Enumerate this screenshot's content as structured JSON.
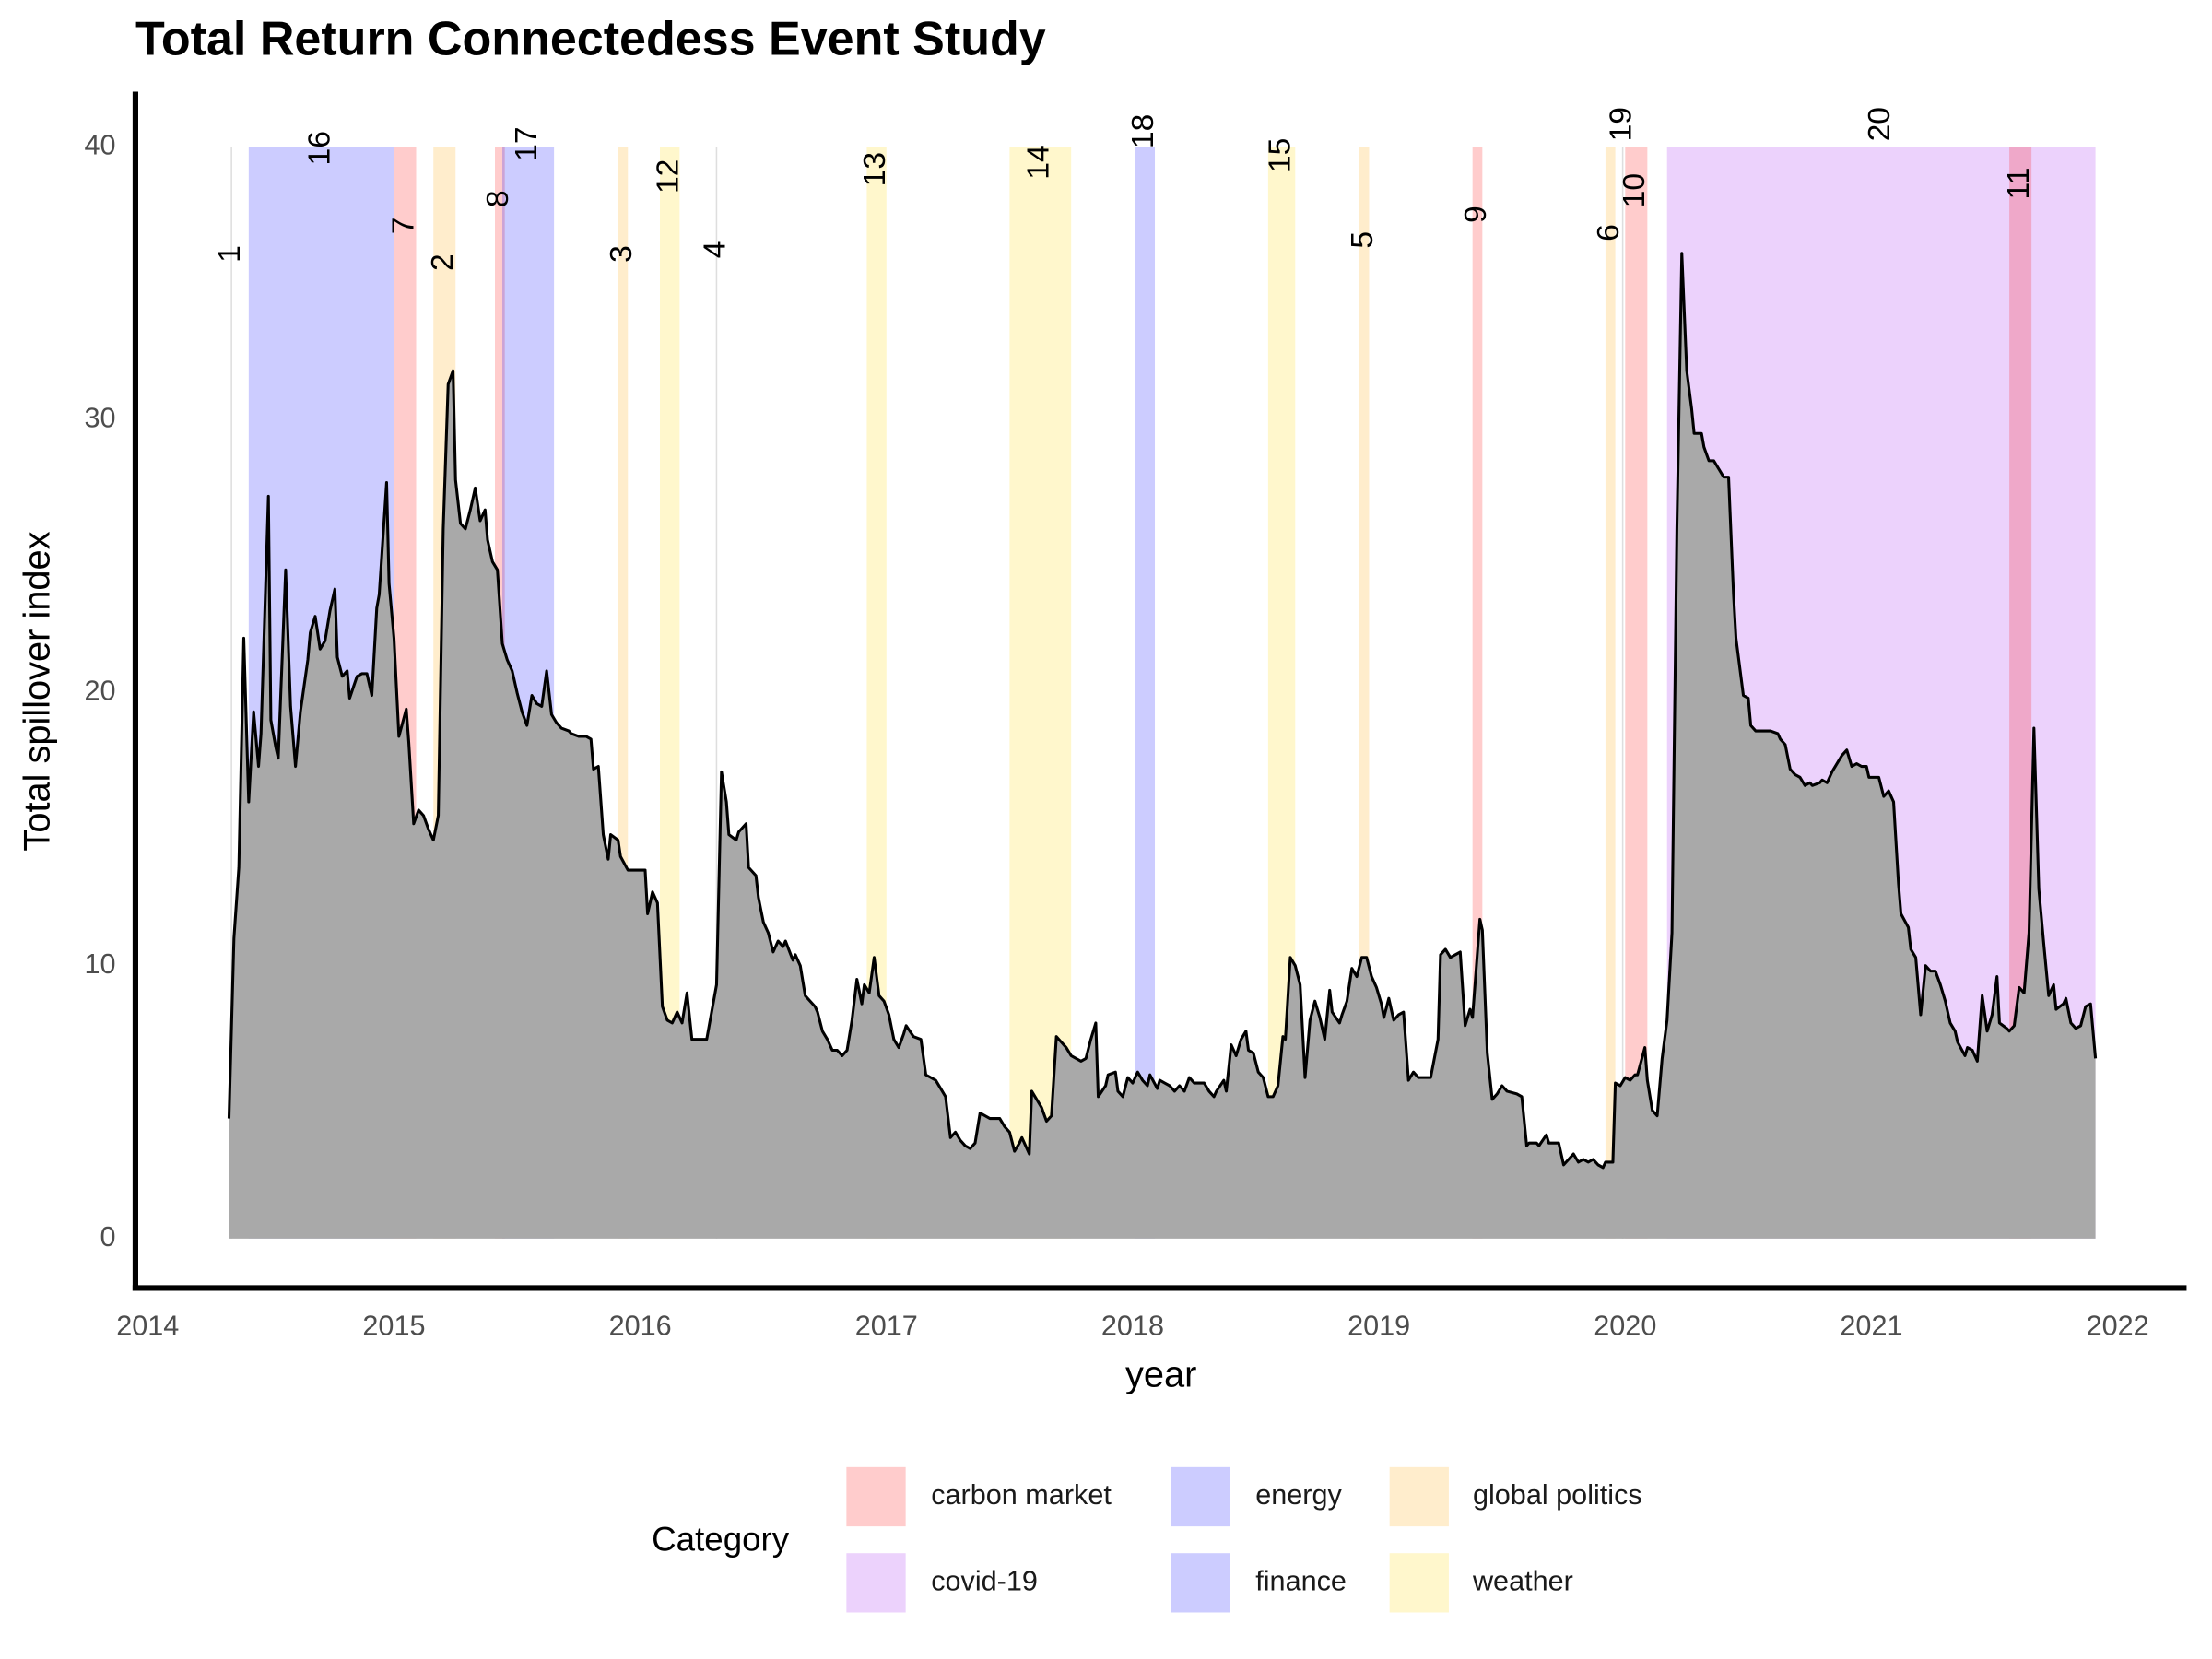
{
  "chart_data": {
    "type": "area",
    "title": "Total Return Connectedess Event Study",
    "x_label": "year",
    "y_label": "Total spillover index",
    "color": "#a9a9a9",
    "line_color": "#000000",
    "xlim": [
      2013.95,
      2022.28
    ],
    "xticks": [
      2014,
      2015,
      2016,
      2017,
      2018,
      2019,
      2020,
      2021,
      2022
    ],
    "ylim": [
      -1.81,
      42.02
    ],
    "yticks": [
      0,
      10,
      20,
      30,
      40
    ],
    "grid": false,
    "band_ylim": [
      0,
      40
    ],
    "legend_title": "Category",
    "legend_position": "bottom",
    "event_categories": [
      {
        "name": "carbon market",
        "color": "#ff0000"
      },
      {
        "name": "covid-19",
        "color": "#a020f0"
      },
      {
        "name": "energy",
        "color": "#0000ff"
      },
      {
        "name": "finance",
        "color": "#0000ff"
      },
      {
        "name": "global politics",
        "color": "#ffa500"
      },
      {
        "name": "weather",
        "color": "#ffd700"
      }
    ],
    "events": [
      {
        "label": "1",
        "start": 2014.34,
        "end": 2014.34
      },
      {
        "label": "16",
        "category": "energy",
        "start": 2014.41,
        "end": 2015.0
      },
      {
        "label": "7",
        "category": "carbon market",
        "start": 2015.0,
        "end": 2015.09
      },
      {
        "label": "2",
        "category": "global politics",
        "start": 2015.16,
        "end": 2015.25
      },
      {
        "label": "8",
        "category": "carbon market",
        "start": 2015.41,
        "end": 2015.45
      },
      {
        "label": "17",
        "category": "finance",
        "start": 2015.44,
        "end": 2015.65
      },
      {
        "label": "3",
        "category": "global politics",
        "start": 2015.91,
        "end": 2015.95
      },
      {
        "label": "12",
        "category": "weather",
        "start": 2016.08,
        "end": 2016.16
      },
      {
        "label": "4",
        "start": 2016.31,
        "end": 2016.31
      },
      {
        "label": "13",
        "category": "weather",
        "start": 2016.92,
        "end": 2017.0
      },
      {
        "label": "14",
        "category": "weather",
        "start": 2017.5,
        "end": 2017.75
      },
      {
        "label": "18",
        "category": "finance",
        "start": 2018.01,
        "end": 2018.09
      },
      {
        "label": "15",
        "category": "weather",
        "start": 2018.55,
        "end": 2018.66
      },
      {
        "label": "5",
        "category": "global politics",
        "start": 2018.92,
        "end": 2018.96
      },
      {
        "label": "9",
        "category": "carbon market",
        "start": 2019.38,
        "end": 2019.42
      },
      {
        "label": "6",
        "category": "global politics",
        "start": 2019.92,
        "end": 2019.96
      },
      {
        "label": "19",
        "start": 2019.99,
        "end": 2019.99
      },
      {
        "label": "10",
        "category": "carbon market",
        "start": 2020.0,
        "end": 2020.09
      },
      {
        "label": "20",
        "category": "covid-19",
        "start": 2020.17,
        "end": 2021.91
      },
      {
        "label": "11",
        "category": "carbon market",
        "start": 2021.56,
        "end": 2021.65
      }
    ],
    "x": [
      2014.33,
      2014.35,
      2014.37,
      2014.39,
      2014.41,
      2014.43,
      2014.45,
      2014.46,
      2014.49,
      2014.5,
      2014.52,
      2014.53,
      2014.56,
      2014.58,
      2014.6,
      2014.62,
      2014.65,
      2014.66,
      2014.68,
      2014.7,
      2014.72,
      2014.74,
      2014.76,
      2014.77,
      2014.79,
      2014.81,
      2014.82,
      2014.85,
      2014.87,
      2014.89,
      2014.91,
      2014.93,
      2014.94,
      2014.97,
      2014.98,
      2015.0,
      2015.02,
      2015.05,
      2015.06,
      2015.08,
      2015.1,
      2015.12,
      2015.14,
      2015.16,
      2015.18,
      2015.2,
      2015.22,
      2015.24,
      2015.25,
      2015.27,
      2015.29,
      2015.31,
      2015.33,
      2015.35,
      2015.37,
      2015.38,
      2015.4,
      2015.42,
      2015.44,
      2015.46,
      2015.48,
      2015.5,
      2015.52,
      2015.54,
      2015.56,
      2015.58,
      2015.6,
      2015.62,
      2015.64,
      2015.66,
      2015.68,
      2015.71,
      2015.72,
      2015.75,
      2015.78,
      2015.8,
      2015.81,
      2015.83,
      2015.85,
      2015.87,
      2015.88,
      2015.91,
      2015.92,
      2015.95,
      2016.02,
      2016.03,
      2016.05,
      2016.07,
      2016.09,
      2016.11,
      2016.13,
      2016.15,
      2016.17,
      2016.19,
      2016.21,
      2016.27,
      2016.28,
      2016.31,
      2016.33,
      2016.35,
      2016.36,
      2016.39,
      2016.4,
      2016.43,
      2016.44,
      2016.47,
      2016.48,
      2016.5,
      2016.52,
      2016.54,
      2016.56,
      2016.58,
      2016.59,
      2016.62,
      2016.63,
      2016.65,
      2016.67,
      2016.69,
      2016.71,
      2016.72,
      2016.74,
      2016.76,
      2016.78,
      2016.8,
      2016.82,
      2016.84,
      2016.86,
      2016.88,
      2016.9,
      2016.91,
      2016.93,
      2016.95,
      2016.97,
      2016.99,
      2017.01,
      2017.03,
      2017.05,
      2017.07,
      2017.08,
      2017.11,
      2017.14,
      2017.16,
      2017.2,
      2017.22,
      2017.24,
      2017.26,
      2017.28,
      2017.3,
      2017.32,
      2017.34,
      2017.36,
      2017.38,
      2017.4,
      2017.42,
      2017.46,
      2017.48,
      2017.5,
      2017.52,
      2017.54,
      2017.55,
      2017.58,
      2017.59,
      2017.61,
      2017.63,
      2017.65,
      2017.67,
      2017.69,
      2017.71,
      2017.73,
      2017.75,
      2017.77,
      2017.79,
      2017.81,
      2017.83,
      2017.85,
      2017.86,
      2017.89,
      2017.9,
      2017.93,
      2017.94,
      2017.96,
      2017.98,
      2018.0,
      2018.02,
      2018.04,
      2018.06,
      2018.07,
      2018.1,
      2018.11,
      2018.13,
      2018.15,
      2018.17,
      2018.19,
      2018.21,
      2018.23,
      2018.25,
      2018.29,
      2018.31,
      2018.33,
      2018.34,
      2018.37,
      2018.38,
      2018.4,
      2018.42,
      2018.44,
      2018.46,
      2018.47,
      2018.49,
      2018.51,
      2018.53,
      2018.55,
      2018.57,
      2018.59,
      2018.61,
      2018.62,
      2018.64,
      2018.66,
      2018.68,
      2018.7,
      2018.72,
      2018.74,
      2018.76,
      2018.78,
      2018.8,
      2018.81,
      2018.84,
      2018.85,
      2018.87,
      2018.89,
      2018.91,
      2018.93,
      2018.95,
      2018.97,
      2018.99,
      2019.01,
      2019.02,
      2019.04,
      2019.06,
      2019.08,
      2019.1,
      2019.12,
      2019.14,
      2019.16,
      2019.21,
      2019.24,
      2019.25,
      2019.27,
      2019.29,
      2019.31,
      2019.33,
      2019.35,
      2019.37,
      2019.38,
      2019.41,
      2019.42,
      2019.44,
      2019.46,
      2019.48,
      2019.5,
      2019.52,
      2019.56,
      2019.58,
      2019.6,
      2019.61,
      2019.64,
      2019.65,
      2019.68,
      2019.69,
      2019.71,
      2019.73,
      2019.75,
      2019.77,
      2019.79,
      2019.81,
      2019.83,
      2019.85,
      2019.87,
      2019.89,
      2019.91,
      2019.92,
      2019.95,
      2019.96,
      2019.98,
      2020.0,
      2020.02,
      2020.04,
      2020.05,
      2020.08,
      2020.09,
      2020.11,
      2020.13,
      2020.15,
      2020.17,
      2020.19,
      2020.21,
      2020.23,
      2020.25,
      2020.27,
      2020.28,
      2020.31,
      2020.32,
      2020.34,
      2020.36,
      2020.38,
      2020.4,
      2020.42,
      2020.44,
      2020.45,
      2020.48,
      2020.5,
      2020.51,
      2020.53,
      2020.59,
      2020.62,
      2020.63,
      2020.65,
      2020.67,
      2020.69,
      2020.71,
      2020.73,
      2020.75,
      2020.76,
      2020.79,
      2020.8,
      2020.82,
      2020.84,
      2020.86,
      2020.88,
      2020.9,
      2020.92,
      2020.94,
      2020.96,
      2020.98,
      2020.99,
      2021.02,
      2021.03,
      2021.05,
      2021.07,
      2021.09,
      2021.11,
      2021.12,
      2021.15,
      2021.16,
      2021.18,
      2021.2,
      2021.22,
      2021.24,
      2021.26,
      2021.28,
      2021.3,
      2021.32,
      2021.34,
      2021.35,
      2021.38,
      2021.39,
      2021.41,
      2021.43,
      2021.45,
      2021.47,
      2021.49,
      2021.51,
      2021.52,
      2021.55,
      2021.56,
      2021.58,
      2021.6,
      2021.62,
      2021.64,
      2021.66,
      2021.68,
      2021.7,
      2021.72,
      2021.74,
      2021.75,
      2021.78,
      2021.79,
      2021.81,
      2021.83,
      2021.85,
      2021.87,
      2021.89,
      2021.91
    ],
    "values": [
      4.4,
      11,
      13.6,
      22,
      16,
      19.3,
      17.3,
      18.5,
      27.2,
      19,
      18,
      17.6,
      24.5,
      19.5,
      17.3,
      19.3,
      21.2,
      22.2,
      22.8,
      21.6,
      21.9,
      23,
      23.8,
      21.3,
      20.6,
      20.8,
      19.8,
      20.6,
      20.7,
      20.7,
      19.9,
      23.1,
      23.6,
      27.7,
      24,
      22,
      18.4,
      19.4,
      18.2,
      15.2,
      15.7,
      15.5,
      15,
      14.6,
      15.5,
      26,
      31.3,
      31.8,
      27.8,
      26.2,
      26,
      26.7,
      27.5,
      26.3,
      26.7,
      25.6,
      24.8,
      24.5,
      21.8,
      21.2,
      20.8,
      20,
      19.3,
      18.8,
      19.9,
      19.6,
      19.5,
      20.8,
      19.2,
      18.9,
      18.7,
      18.6,
      18.5,
      18.4,
      18.4,
      18.3,
      17.2,
      17.3,
      14.8,
      13.9,
      14.8,
      14.6,
      14,
      13.5,
      13.5,
      11.9,
      12.7,
      12.3,
      8.5,
      8,
      7.9,
      8.3,
      7.9,
      9,
      7.3,
      7.3,
      7.8,
      9.3,
      17.1,
      16,
      14.8,
      14.6,
      14.9,
      15.2,
      13.6,
      13.3,
      12.5,
      11.6,
      11.2,
      10.5,
      10.9,
      10.7,
      10.9,
      10.2,
      10.4,
      10,
      8.9,
      8.7,
      8.5,
      8.3,
      7.6,
      7.3,
      6.9,
      6.9,
      6.7,
      6.9,
      8,
      9.5,
      8.6,
      9.3,
      9,
      10.3,
      8.9,
      8.7,
      8.2,
      7.3,
      7,
      7.5,
      7.8,
      7.4,
      7.3,
      6,
      5.8,
      5.5,
      5.2,
      3.7,
      3.9,
      3.6,
      3.4,
      3.3,
      3.5,
      4.6,
      4.5,
      4.4,
      4.4,
      4.1,
      3.9,
      3.2,
      3.5,
      3.7,
      3.1,
      5.4,
      5.1,
      4.8,
      4.3,
      4.5,
      7.4,
      7.2,
      7,
      6.7,
      6.6,
      6.5,
      6.6,
      7.3,
      7.9,
      5.2,
      5.6,
      6,
      6.1,
      5.4,
      5.2,
      5.9,
      5.7,
      6.1,
      5.8,
      5.6,
      6,
      5.5,
      5.8,
      5.7,
      5.6,
      5.4,
      5.6,
      5.4,
      5.9,
      5.7,
      5.7,
      5.4,
      5.2,
      5.4,
      5.8,
      5.4,
      7.1,
      6.7,
      7.3,
      7.6,
      6.9,
      6.8,
      6.1,
      5.9,
      5.2,
      5.2,
      5.6,
      7.4,
      7.3,
      10.3,
      10,
      9.3,
      5.9,
      8,
      8.7,
      8.1,
      7.3,
      9.1,
      8.3,
      7.9,
      8.2,
      8.7,
      9.9,
      9.6,
      10.3,
      10.3,
      9.6,
      9.2,
      8.6,
      8.1,
      8.8,
      8,
      8.2,
      8.3,
      5.8,
      6.1,
      5.9,
      5.9,
      7.3,
      10.4,
      10.6,
      10.3,
      10.4,
      10.5,
      7.8,
      8.4,
      8.1,
      11.7,
      11.3,
      6.8,
      5.1,
      5.3,
      5.6,
      5.4,
      5.3,
      5.2,
      3.4,
      3.5,
      3.5,
      3.4,
      3.8,
      3.5,
      3.5,
      3.5,
      2.7,
      2.9,
      3.1,
      2.8,
      2.9,
      2.8,
      2.9,
      2.7,
      2.6,
      2.8,
      2.8,
      5.7,
      5.6,
      5.9,
      5.8,
      6,
      6,
      7,
      5.8,
      4.7,
      4.5,
      6.6,
      8,
      11.2,
      26,
      36.1,
      31.8,
      30.4,
      29.5,
      29.5,
      29,
      28.5,
      28.5,
      28.2,
      27.9,
      27.9,
      23.6,
      22,
      19.9,
      19.8,
      18.8,
      18.6,
      18.6,
      18.5,
      18.3,
      18.1,
      17.2,
      17,
      16.9,
      16.6,
      16.7,
      16.6,
      16.7,
      16.8,
      16.7,
      17.1,
      17.4,
      17.7,
      17.9,
      17.3,
      17.4,
      17.3,
      17.3,
      16.9,
      16.9,
      16.9,
      16.2,
      16.4,
      16,
      13,
      11.9,
      11.4,
      10.6,
      10.3,
      8.2,
      10,
      9.8,
      9.8,
      9.3,
      8.7,
      7.9,
      7.6,
      7.2,
      6.7,
      7,
      6.9,
      6.5,
      8.9,
      7.6,
      8.2,
      9.6,
      7.9,
      7.7,
      7.6,
      7.8,
      9.2,
      9,
      11.2,
      18.7,
      12.8,
      10.8,
      8.9,
      9.3,
      8.4,
      8.6,
      8.8,
      7.9,
      7.7,
      7.8,
      8.5,
      8.6,
      6.6
    ]
  }
}
